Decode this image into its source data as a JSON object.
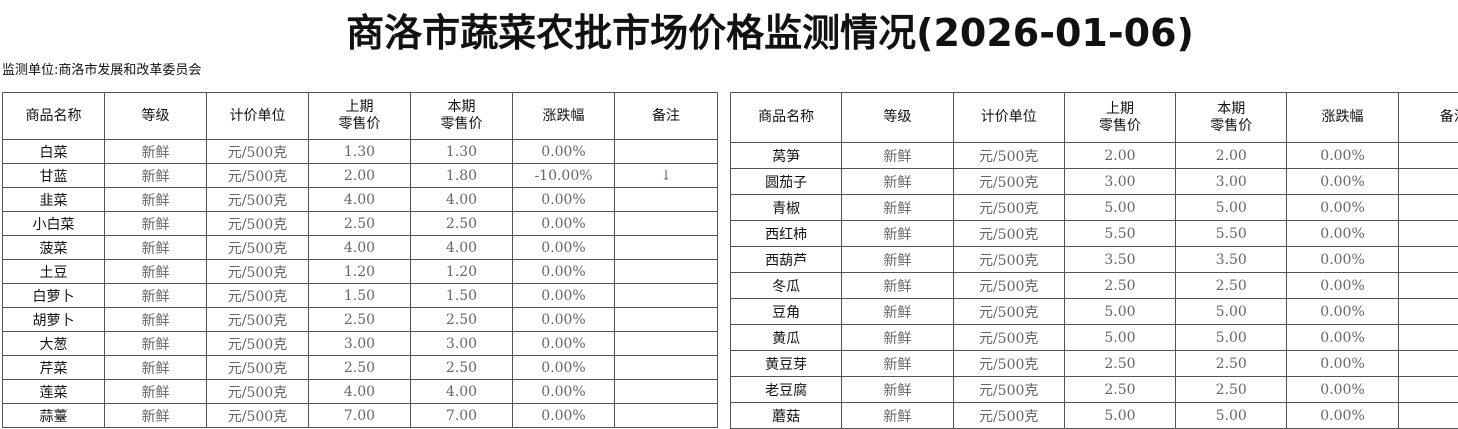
{
  "title": "商洛市蔬菜农批市场价格监测情况(2026-01-06)",
  "monitor_unit": "监测单位:商洛市发展和改革委员会",
  "headers": [
    "商品名称",
    "等级",
    "计价单位",
    "上期\n零售价",
    "本期\n零售价",
    "涨跌幅",
    "备注"
  ],
  "left_rows": [
    [
      "白菜",
      "新鲜",
      "元/500克",
      "1.30",
      "1.30",
      "0.00%",
      ""
    ],
    [
      "甘蓝",
      "新鲜",
      "元/500克",
      "2.00",
      "1.80",
      "-10.00%",
      "↓"
    ],
    [
      "韭菜",
      "新鲜",
      "元/500克",
      "4.00",
      "4.00",
      "0.00%",
      ""
    ],
    [
      "小白菜",
      "新鲜",
      "元/500克",
      "2.50",
      "2.50",
      "0.00%",
      ""
    ],
    [
      "菠菜",
      "新鲜",
      "元/500克",
      "4.00",
      "4.00",
      "0.00%",
      ""
    ],
    [
      "土豆",
      "新鲜",
      "元/500克",
      "1.20",
      "1.20",
      "0.00%",
      ""
    ],
    [
      "白萝卜",
      "新鲜",
      "元/500克",
      "1.50",
      "1.50",
      "0.00%",
      ""
    ],
    [
      "胡萝卜",
      "新鲜",
      "元/500克",
      "2.50",
      "2.50",
      "0.00%",
      ""
    ],
    [
      "大葱",
      "新鲜",
      "元/500克",
      "3.00",
      "3.00",
      "0.00%",
      ""
    ],
    [
      "芹菜",
      "新鲜",
      "元/500克",
      "2.50",
      "2.50",
      "0.00%",
      ""
    ],
    [
      "莲菜",
      "新鲜",
      "元/500克",
      "4.00",
      "4.00",
      "0.00%",
      ""
    ],
    [
      "蒜薹",
      "新鲜",
      "元/500克",
      "7.00",
      "7.00",
      "0.00%",
      ""
    ]
  ],
  "right_rows": [
    [
      "莴笋",
      "新鲜",
      "元/500克",
      "2.00",
      "2.00",
      "0.00%",
      ""
    ],
    [
      "圆茄子",
      "新鲜",
      "元/500克",
      "3.00",
      "3.00",
      "0.00%",
      ""
    ],
    [
      "青椒",
      "新鲜",
      "元/500克",
      "5.00",
      "5.00",
      "0.00%",
      ""
    ],
    [
      "西红柿",
      "新鲜",
      "元/500克",
      "5.50",
      "5.50",
      "0.00%",
      ""
    ],
    [
      "西葫芦",
      "新鲜",
      "元/500克",
      "3.50",
      "3.50",
      "0.00%",
      ""
    ],
    [
      "冬瓜",
      "新鲜",
      "元/500克",
      "2.50",
      "2.50",
      "0.00%",
      ""
    ],
    [
      "豆角",
      "新鲜",
      "元/500克",
      "5.00",
      "5.00",
      "0.00%",
      ""
    ],
    [
      "黄瓜",
      "新鲜",
      "元/500克",
      "5.00",
      "5.00",
      "0.00%",
      ""
    ],
    [
      "黄豆芽",
      "新鲜",
      "元/500克",
      "2.50",
      "2.50",
      "0.00%",
      ""
    ],
    [
      "老豆腐",
      "新鲜",
      "元/500克",
      "2.50",
      "2.50",
      "0.00%",
      ""
    ],
    [
      "蘑菇",
      "新鲜",
      "元/500克",
      "5.00",
      "5.00",
      "0.00%",
      ""
    ]
  ]
}
